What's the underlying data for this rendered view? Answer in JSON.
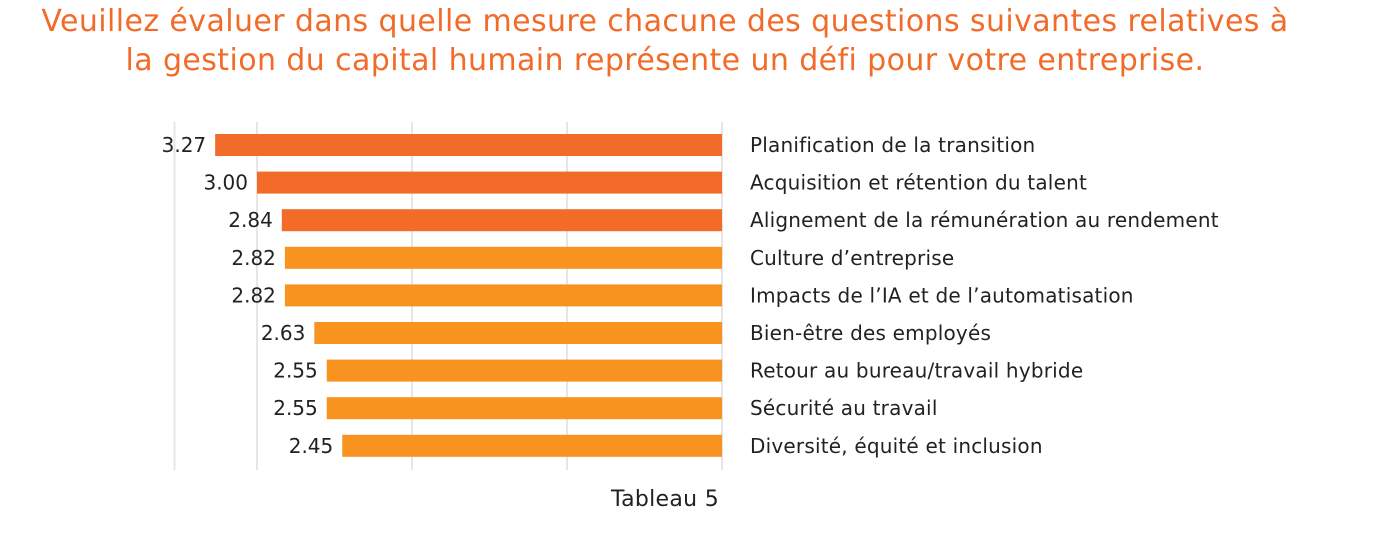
{
  "title_lines": [
    "Veuillez évaluer dans quelle mesure chacune des questions suivantes relatives à",
    "la gestion du capital humain représente un défi pour votre entreprise."
  ],
  "caption": "Tableau 5",
  "colors": {
    "title": "#F26B29",
    "bar_dark": "#F26B29",
    "bar_light": "#F7931E",
    "text": "#222222",
    "grid": "#E6E6E6"
  },
  "chart_data": {
    "type": "bar",
    "orientation": "horizontal",
    "direction": "right-to-left",
    "title": "Veuillez évaluer dans quelle mesure chacune des questions suivantes relatives à la gestion du capital humain représente un défi pour votre entreprise.",
    "xlabel": "",
    "ylabel": "",
    "xlim": [
      0,
      3.5
    ],
    "grid": true,
    "legend": "none",
    "categories": [
      "Planification de la transition",
      "Acquisition et rétention du talent",
      "Alignement de la rémunération au rendement",
      "Culture d’entreprise",
      "Impacts de l’IA et de l’automatisation",
      "Bien-être des employés",
      "Retour au bureau/travail hybride",
      "Sécurité au travail",
      "Diversité, équité et inclusion"
    ],
    "values": [
      3.27,
      3.0,
      2.84,
      2.82,
      2.82,
      2.63,
      2.55,
      2.55,
      2.45
    ],
    "value_labels": [
      "3.27",
      "3.00",
      "2.84",
      "2.82",
      "2.82",
      "2.63",
      "2.55",
      "2.55",
      "2.45"
    ],
    "bar_color_groups": [
      "dark",
      "dark",
      "dark",
      "light",
      "light",
      "light",
      "light",
      "light",
      "light"
    ]
  }
}
